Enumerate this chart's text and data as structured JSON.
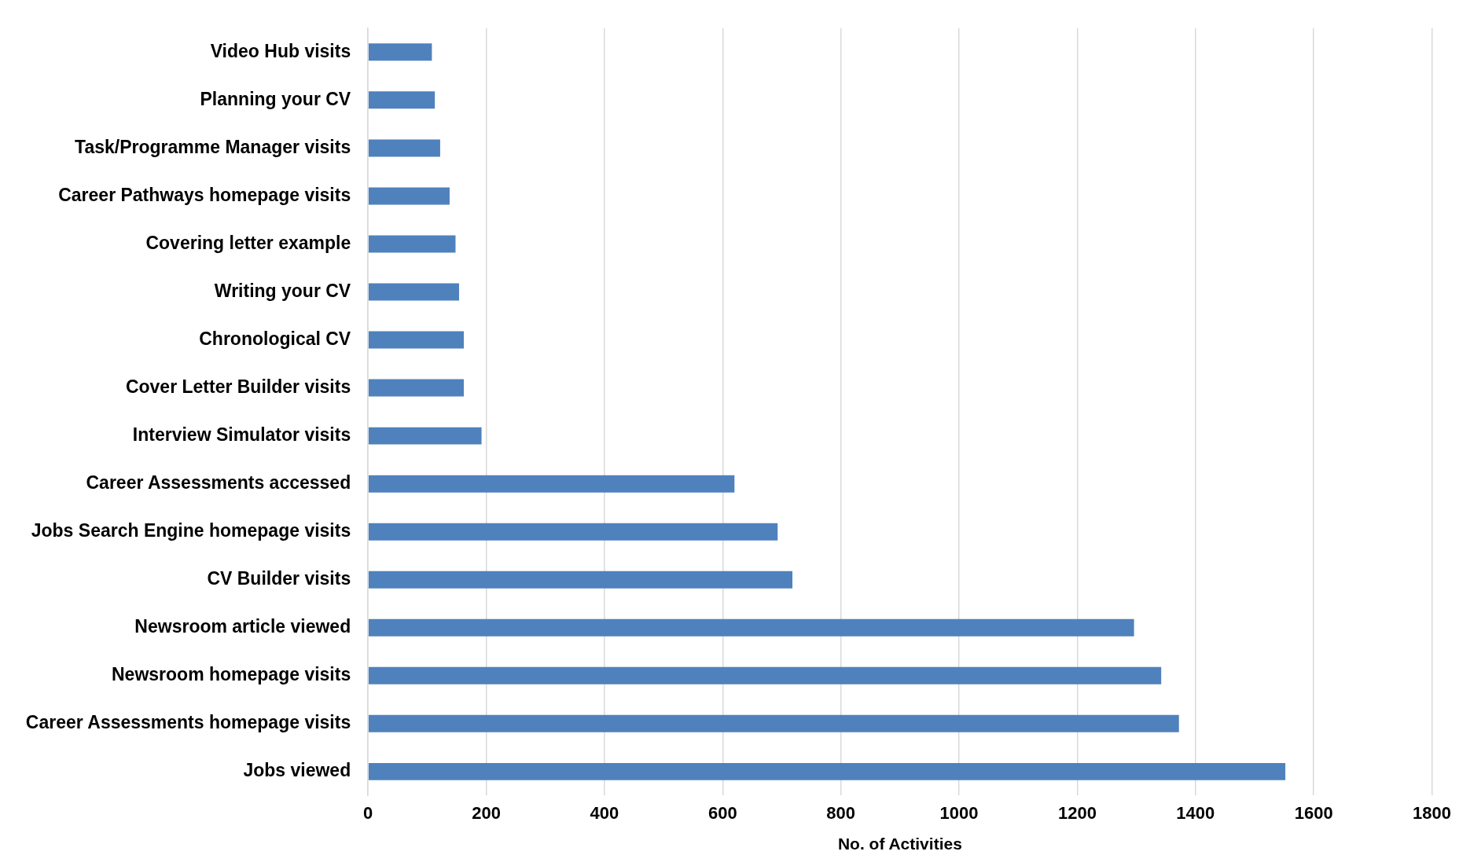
{
  "chart_data": {
    "type": "bar",
    "orientation": "horizontal",
    "xlabel": "No. of Activities",
    "categories": [
      "Video Hub visits",
      "Planning your CV",
      "Task/Programme Manager visits",
      "Career Pathways homepage visits",
      "Covering letter example",
      "Writing your CV",
      "Chronological CV",
      "Cover Letter Builder visits",
      "Interview Simulator visits",
      "Career Assessments accessed",
      "Jobs Search Engine homepage visits",
      "CV Builder visits",
      "Newsroom article viewed",
      "Newsroom homepage visits",
      "Career Assessments homepage visits",
      "Jobs viewed"
    ],
    "values": [
      108,
      113,
      122,
      138,
      148,
      154,
      162,
      162,
      192,
      620,
      693,
      718,
      1296,
      1342,
      1372,
      1552
    ],
    "color": "#4f81bd",
    "xlim": [
      0,
      1800
    ],
    "xticks": [
      0,
      200,
      400,
      600,
      800,
      1000,
      1200,
      1400,
      1600,
      1800
    ],
    "grid": "x",
    "legend": false
  }
}
